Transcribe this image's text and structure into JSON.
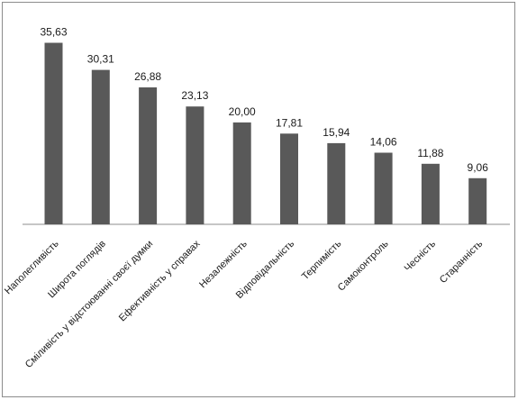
{
  "chart_data": {
    "type": "bar",
    "categories": [
      "Наполегливість",
      "Широта поглядів",
      "Сміливість у відстоюванні своєї думки",
      "Ефективність у справах",
      "Незалежність",
      "Відповідальність",
      "Терпимість",
      "Самоконтроль",
      "Чесність",
      "Старанність"
    ],
    "series": [
      {
        "values": [
          35.63,
          30.31,
          26.88,
          23.13,
          20.0,
          17.81,
          15.94,
          14.06,
          11.88,
          9.06
        ],
        "value_labels": [
          "35,63",
          "30,31",
          "26,88",
          "23,13",
          "20,00",
          "17,81",
          "15,94",
          "14,06",
          "11,88",
          "9,06"
        ]
      }
    ],
    "ylim": [
      0,
      36
    ],
    "bar_color": "#595959",
    "grid": false,
    "legend": "none",
    "label_rotation_deg": -45
  }
}
